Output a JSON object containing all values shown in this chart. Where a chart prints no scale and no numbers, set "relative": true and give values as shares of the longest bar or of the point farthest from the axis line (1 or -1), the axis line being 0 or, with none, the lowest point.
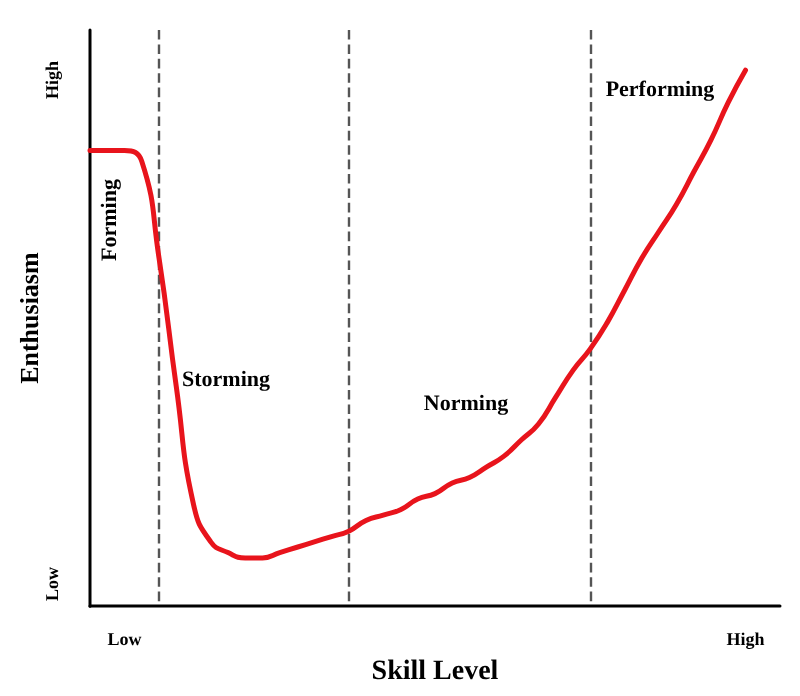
{
  "chart_data": {
    "type": "line",
    "xlabel": "Skill Level",
    "ylabel": "Enthusiasm",
    "relative": true,
    "categories": [
      null,
      null,
      "Low",
      null,
      null,
      null,
      null,
      null,
      null,
      null,
      null,
      null,
      null,
      null,
      null,
      null,
      null,
      null,
      null,
      null,
      null,
      null,
      null,
      null,
      null,
      null,
      null,
      null,
      null,
      null,
      null,
      null,
      null,
      null,
      null,
      null,
      null,
      null,
      "High",
      null,
      null
    ],
    "grid": "x",
    "marker": "none",
    "line_style": "solid",
    "series": [
      {
        "color": "#e8141c",
        "values": [
          0.85,
          0.85,
          0.85,
          0.83,
          0.65,
          0.41,
          0.19,
          0.12,
          0.1,
          0.09,
          0.09,
          0.1,
          0.11,
          0.12,
          0.13,
          0.14,
          0.16,
          0.17,
          0.18,
          0.2,
          0.21,
          0.23,
          0.24,
          0.26,
          0.28,
          0.31,
          0.34,
          0.39,
          0.44,
          0.48,
          0.53,
          0.59,
          0.65,
          0.7,
          0.75,
          0.81,
          0.87,
          0.94,
          1,
          null,
          null
        ]
      }
    ],
    "annotations": [
      "Forming",
      "Storming",
      "Norming",
      "Performing",
      "High",
      "Low"
    ]
  }
}
